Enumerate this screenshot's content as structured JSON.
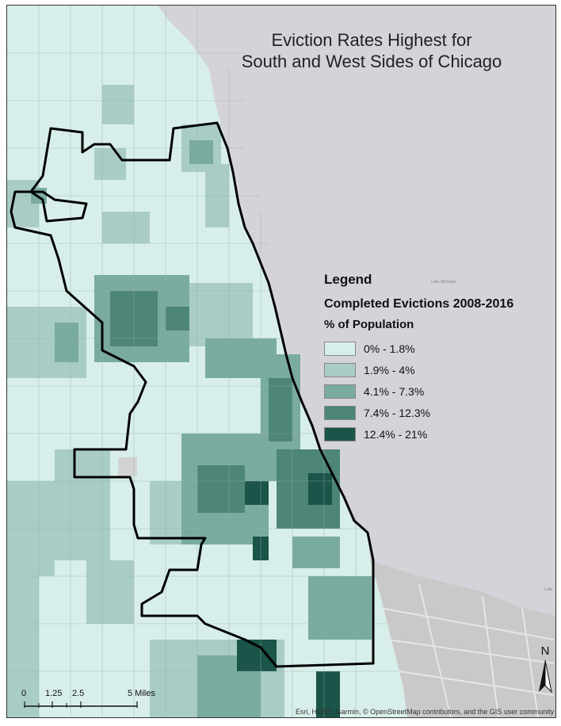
{
  "map": {
    "title_line1": "Eviction Rates Highest for",
    "title_line2": "South and West Sides of Chicago",
    "lake_labels": [
      "Lake Michigan",
      "Lake"
    ],
    "attribution": "Esri, HERE, Garmin, © OpenStreetMap contributors, and the GIS user community"
  },
  "legend": {
    "heading": "Legend",
    "subtitle": "Completed Evictions 2008-2016",
    "field": "% of Population",
    "classes": [
      {
        "label": "0% - 1.8%",
        "color": "#d8eeea"
      },
      {
        "label": "1.9% - 4%",
        "color": "#a9cdc5"
      },
      {
        "label": "4.1% - 7.3%",
        "color": "#7aaba1"
      },
      {
        "label": "7.4% - 12.3%",
        "color": "#4e8579"
      },
      {
        "label": "12.4% - 21%",
        "color": "#1b5449"
      }
    ]
  },
  "scale": {
    "ticks": [
      "0",
      "1.25",
      "2.5",
      "5 Miles"
    ]
  },
  "north_arrow": {
    "letter": "N"
  },
  "colors": {
    "lake": "#d4d3d9",
    "land_base": "#d8eeea",
    "boundary": "#000000",
    "urban_gray": "#c9c9c9"
  }
}
